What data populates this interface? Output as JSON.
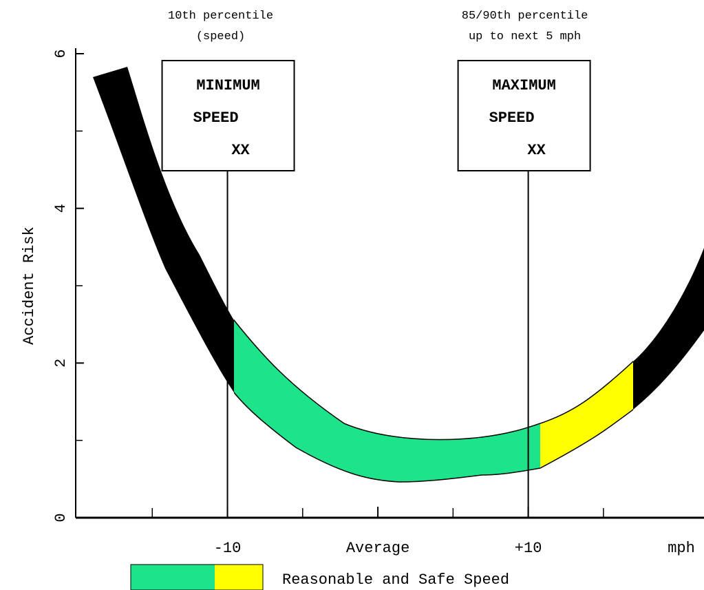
{
  "chart_data": {
    "type": "band",
    "ylabel": "Accident Risk",
    "xlabel": "mph",
    "ylim": [
      0,
      6
    ],
    "yticks": [
      0,
      2,
      4,
      6
    ],
    "yminor_ticks": [
      1,
      3,
      5
    ],
    "xlim": [
      -20,
      21
    ],
    "xticks": [
      -10,
      {
        "value": 0,
        "label": "Average"
      },
      {
        "value": 10,
        "label": "+10"
      }
    ],
    "xminor_ticks": [
      -15,
      -5,
      5,
      15
    ],
    "annotations": [
      {
        "lines": [
          "10th percentile",
          "(speed)"
        ],
        "box": [
          "MINIMUM",
          "SPEED",
          "XX"
        ],
        "x": -10
      },
      {
        "lines": [
          "85/90th percentile",
          "up to next 5 mph"
        ],
        "box": [
          "MAXIMUM",
          "SPEED",
          "XX"
        ],
        "x": 10
      }
    ],
    "legend": "Reasonable and Safe Speed",
    "colors": {
      "risk": "#000000",
      "safe": "#1de38a",
      "upper": "#ffff00"
    }
  }
}
